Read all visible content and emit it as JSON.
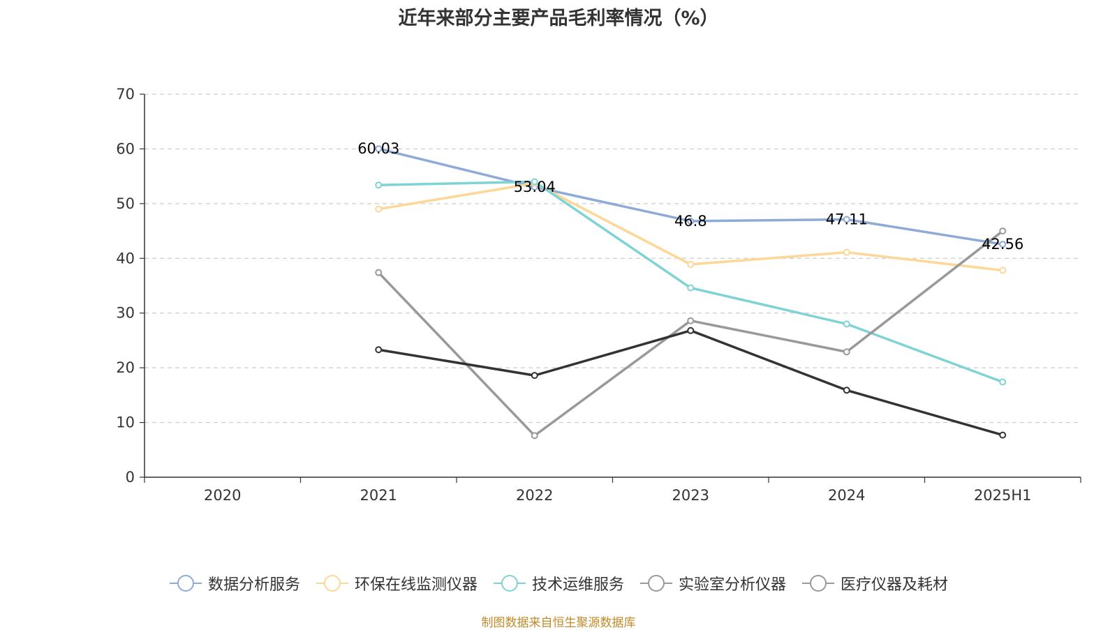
{
  "title": "近年来部分主要产品毛利率情况（%）",
  "source": "制图数据来自恒生聚源数据库",
  "chart_data": {
    "type": "line",
    "title": "近年来部分主要产品毛利率情况（%）",
    "categories": [
      "2020",
      "2021",
      "2022",
      "2023",
      "2024",
      "2025H1"
    ],
    "ylim": [
      0,
      70
    ],
    "yticks": [
      0,
      10,
      20,
      30,
      40,
      50,
      60,
      70
    ],
    "grid": "horizontal dashed",
    "legend_position": "bottom",
    "series": [
      {
        "name": "数据分析服务",
        "color": "#8eaad6",
        "values": [
          null,
          60.03,
          53.04,
          46.8,
          47.11,
          42.56
        ],
        "data_labels": [
          null,
          "60.03",
          "53.04",
          "46.8",
          "47.11",
          "42.56"
        ]
      },
      {
        "name": "环保在线监测仪器",
        "color": "#fcd797",
        "values": [
          null,
          49.0,
          53.7,
          38.9,
          41.1,
          37.8
        ]
      },
      {
        "name": "技术运维服务",
        "color": "#7fd3d4",
        "values": [
          null,
          53.4,
          54.0,
          34.6,
          28.0,
          17.4
        ]
      },
      {
        "name": "实验室分析仪器",
        "color": "#999999",
        "values": [
          null,
          37.4,
          7.6,
          28.6,
          22.9,
          45.0
        ]
      },
      {
        "name": "医疗仪器及耗材",
        "color": "#333333",
        "values": [
          null,
          23.3,
          18.6,
          26.8,
          15.9,
          7.7
        ],
        "legend_color": "#999999"
      }
    ]
  }
}
